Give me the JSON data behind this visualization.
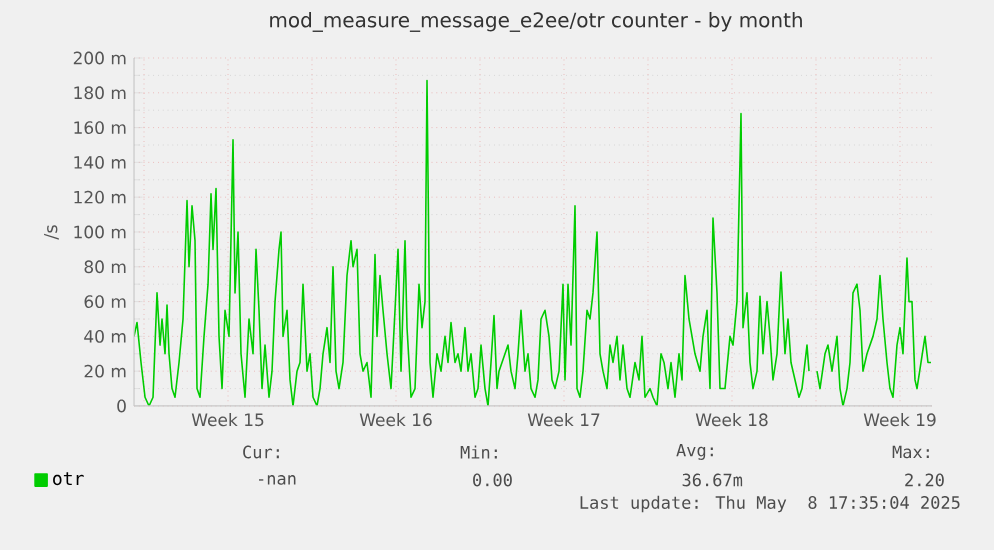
{
  "chart_data": {
    "type": "line",
    "title": "mod_measure_message_e2ee/otr counter - by month",
    "ylabel": "/s",
    "xlim": [
      "2025-04-06T14:00",
      "2025-05-09T20:00"
    ],
    "ylim": [
      0,
      200
    ],
    "xticks": [
      {
        "value": "2025-04-07T00:00",
        "label": null
      },
      {
        "value": "2025-04-10T12:00",
        "label": "Week 15"
      },
      {
        "value": "2025-04-14T00:00",
        "label": null
      },
      {
        "value": "2025-04-17T12:00",
        "label": "Week 16"
      },
      {
        "value": "2025-04-21T00:00",
        "label": null
      },
      {
        "value": "2025-04-24T12:00",
        "label": "Week 17"
      },
      {
        "value": "2025-04-28T00:00",
        "label": null
      },
      {
        "value": "2025-05-01T12:00",
        "label": "Week 18"
      },
      {
        "value": "2025-05-05T00:00",
        "label": null
      },
      {
        "value": "2025-05-08T12:00",
        "label": "Week 19"
      }
    ],
    "yticks": [
      {
        "value": 0,
        "label": "0"
      },
      {
        "value": 20,
        "label": "20 m"
      },
      {
        "value": 40,
        "label": "40 m"
      },
      {
        "value": 60,
        "label": "60 m"
      },
      {
        "value": 80,
        "label": "80 m"
      },
      {
        "value": 100,
        "label": "100 m"
      },
      {
        "value": 120,
        "label": "120 m"
      },
      {
        "value": 140,
        "label": "140 m"
      },
      {
        "value": 160,
        "label": "160 m"
      },
      {
        "value": 180,
        "label": "180 m"
      },
      {
        "value": 200,
        "label": "200 m"
      }
    ],
    "grid": true,
    "legend": "bottom",
    "annotations": [
      "Cur:",
      "Min:",
      "Avg:",
      "Max:",
      "-nan",
      "0.00",
      "36.67m",
      "2.20",
      "Last update: Thu May  8 17:35:04 2025"
    ],
    "series": [
      {
        "name": "otr",
        "color": "#00cc00",
        "x": [
          "2025-04-06T14:00",
          "2025-04-06T17:00",
          "2025-04-06T21:00",
          "2025-04-07T01:00",
          "2025-04-07T05:00",
          "2025-04-07T09:00",
          "2025-04-07T13:00",
          "2025-04-07T16:00",
          "2025-04-07T18:00",
          "2025-04-07T21:00",
          "2025-04-07T23:00",
          "2025-04-08T01:00",
          "2025-04-08T04:00",
          "2025-04-08T07:00",
          "2025-04-08T11:00",
          "2025-04-08T15:00",
          "2025-04-08T19:00",
          "2025-04-08T21:00",
          "2025-04-09T00:00",
          "2025-04-09T03:00",
          "2025-04-09T05:00",
          "2025-04-09T08:00",
          "2025-04-09T12:00",
          "2025-04-09T16:00",
          "2025-04-09T19:00",
          "2025-04-09T21:00",
          "2025-04-10T00:00",
          "2025-04-10T03:00",
          "2025-04-10T06:00",
          "2025-04-10T09:00",
          "2025-04-10T13:00",
          "2025-04-10T17:00",
          "2025-04-10T19:00",
          "2025-04-10T22:00",
          "2025-04-11T01:00",
          "2025-04-11T05:00",
          "2025-04-11T09:00",
          "2025-04-11T13:00",
          "2025-04-11T16:00",
          "2025-04-11T19:00",
          "2025-04-11T22:00",
          "2025-04-12T01:00",
          "2025-04-12T05:00",
          "2025-04-12T08:00",
          "2025-04-12T11:00",
          "2025-04-12T15:00",
          "2025-04-12T17:00",
          "2025-04-12T19:00",
          "2025-04-12T23:00",
          "2025-04-13T02:00",
          "2025-04-13T05:00",
          "2025-04-13T09:00",
          "2025-04-13T12:00",
          "2025-04-13T15:00",
          "2025-04-13T19:00",
          "2025-04-13T22:00",
          "2025-04-14T01:00",
          "2025-04-14T05:00",
          "2025-04-14T08:00",
          "2025-04-14T11:00",
          "2025-04-14T15:00",
          "2025-04-14T18:00",
          "2025-04-14T21:00",
          "2025-04-15T00:00",
          "2025-04-15T03:00",
          "2025-04-15T07:00",
          "2025-04-15T11:00",
          "2025-04-15T15:00",
          "2025-04-15T17:00",
          "2025-04-15T21:00",
          "2025-04-16T00:00",
          "2025-04-16T03:00",
          "2025-04-16T07:00",
          "2025-04-16T11:00",
          "2025-04-16T15:00",
          "2025-04-16T17:00",
          "2025-04-16T20:00",
          "2025-04-16T23:00",
          "2025-04-17T03:00",
          "2025-04-17T07:00",
          "2025-04-17T11:00",
          "2025-04-17T14:00",
          "2025-04-17T17:00",
          "2025-04-17T21:00",
          "2025-04-17T23:00",
          "2025-04-18T03:00",
          "2025-04-18T07:00",
          "2025-04-18T11:00",
          "2025-04-18T14:00",
          "2025-04-18T17:00",
          "2025-04-18T19:00",
          "2025-04-18T22:00",
          "2025-04-19T01:00",
          "2025-04-19T05:00",
          "2025-04-19T09:00",
          "2025-04-19T13:00",
          "2025-04-19T16:00",
          "2025-04-19T19:00",
          "2025-04-19T23:00",
          "2025-04-20T02:00",
          "2025-04-20T05:00",
          "2025-04-20T09:00",
          "2025-04-20T12:00",
          "2025-04-20T15:00",
          "2025-04-20T19:00",
          "2025-04-20T22:00",
          "2025-04-21T01:00",
          "2025-04-21T05:00",
          "2025-04-21T08:00",
          "2025-04-21T11:00",
          "2025-04-21T14:00",
          "2025-04-21T17:00",
          "2025-04-21T19:00",
          "2025-04-22T01:00",
          "2025-04-22T04:00",
          "2025-04-22T07:00",
          "2025-04-22T11:00",
          "2025-04-22T14:00",
          "2025-04-22T17:00",
          "2025-04-22T21:00",
          "2025-04-23T00:00",
          "2025-04-23T03:00",
          "2025-04-23T07:00",
          "2025-04-23T10:00",
          "2025-04-23T13:00",
          "2025-04-23T17:00",
          "2025-04-23T21:00",
          "2025-04-24T00:00",
          "2025-04-24T03:00",
          "2025-04-24T07:00",
          "2025-04-24T11:00",
          "2025-04-24T13:00",
          "2025-04-24T16:00",
          "2025-04-24T19:00",
          "2025-04-24T23:00",
          "2025-04-25T01:00",
          "2025-04-25T04:00",
          "2025-04-25T07:00",
          "2025-04-25T11:00",
          "2025-04-25T14:00",
          "2025-04-25T17:00",
          "2025-04-25T21:00",
          "2025-04-26T00:00",
          "2025-04-26T03:00",
          "2025-04-26T07:00",
          "2025-04-26T10:00",
          "2025-04-26T13:00",
          "2025-04-26T17:00",
          "2025-04-26T20:00",
          "2025-04-26T23:00",
          "2025-04-27T03:00",
          "2025-04-27T06:00",
          "2025-04-27T11:00",
          "2025-04-27T15:00",
          "2025-04-27T18:00",
          "2025-04-27T21:00",
          "2025-04-28T02:00",
          "2025-04-28T05:00",
          "2025-04-28T09:00",
          "2025-04-28T13:00",
          "2025-04-28T16:00",
          "2025-04-28T20:00",
          "2025-04-28T23:00",
          "2025-04-29T03:00",
          "2025-04-29T07:00",
          "2025-04-29T10:00",
          "2025-04-29T13:00",
          "2025-04-29T17:00",
          "2025-04-29T20:00",
          "2025-04-29T23:00",
          "2025-04-30T04:00",
          "2025-04-30T07:00",
          "2025-04-30T11:00",
          "2025-04-30T14:00",
          "2025-04-30T17:00",
          "2025-04-30T21:00",
          "2025-05-01T00:00",
          "2025-05-01T05:00",
          "2025-05-01T10:00",
          "2025-05-01T13:00",
          "2025-05-01T17:00",
          "2025-05-01T21:00",
          "2025-05-01T23:00",
          "2025-05-02T03:00",
          "2025-05-02T06:00",
          "2025-05-02T09:00",
          "2025-05-02T13:00",
          "2025-05-02T16:00",
          "2025-05-02T19:00",
          "2025-05-02T23:00",
          "2025-05-03T02:00",
          "2025-05-03T05:00",
          "2025-05-03T09:00",
          "2025-05-03T13:00",
          "2025-05-03T17:00",
          "2025-05-03T20:00",
          "2025-05-03T23:00",
          "2025-05-04T03:00",
          "2025-05-04T07:00",
          "2025-05-04T10:00",
          "2025-05-04T15:00",
          "2025-05-04T17:00",
          "2025-05-04T21:00",
          "2025-05-05T01:00",
          "2025-05-05T04:00",
          "2025-05-05T09:00",
          "2025-05-05T12:00",
          "2025-05-05T16:00",
          "2025-05-05T21:00",
          "2025-05-06T00:00",
          "2025-05-06T03:00",
          "2025-05-06T07:00",
          "2025-05-06T10:00",
          "2025-05-06T13:00",
          "2025-05-06T17:00",
          "2025-05-06T20:00",
          "2025-05-06T23:00",
          "2025-05-07T03:00",
          "2025-05-07T09:00",
          "2025-05-07T13:00",
          "2025-05-07T16:00",
          "2025-05-07T19:00",
          "2025-05-07T23:00",
          "2025-05-08T02:00",
          "2025-05-08T05:00",
          "2025-05-08T09:00",
          "2025-05-08T12:00",
          "2025-05-08T15:00",
          "2025-05-08T19:00",
          "2025-05-08T21:00",
          "2025-05-09T00:00",
          "2025-05-09T03:00",
          "2025-05-09T05:00",
          "2025-05-09T09:00",
          "2025-05-09T13:00",
          "2025-05-09T16:00",
          "2025-05-09T19:00"
        ],
        "values": [
          40,
          48,
          25,
          5,
          0,
          5,
          65,
          35,
          50,
          30,
          58,
          30,
          10,
          5,
          25,
          50,
          118,
          80,
          115,
          95,
          10,
          5,
          40,
          70,
          122,
          90,
          125,
          40,
          10,
          55,
          40,
          153,
          65,
          100,
          30,
          5,
          50,
          30,
          90,
          55,
          10,
          35,
          5,
          20,
          60,
          90,
          100,
          40,
          55,
          15,
          0,
          20,
          25,
          70,
          20,
          30,
          5,
          0,
          10,
          30,
          45,
          25,
          80,
          20,
          10,
          25,
          75,
          95,
          80,
          90,
          30,
          20,
          25,
          5,
          87,
          40,
          75,
          55,
          30,
          10,
          55,
          90,
          20,
          95,
          45,
          5,
          10,
          70,
          45,
          60,
          187,
          25,
          5,
          30,
          20,
          40,
          25,
          48,
          25,
          30,
          20,
          45,
          20,
          30,
          5,
          10,
          35,
          10,
          0,
          25,
          52,
          10,
          20,
          30,
          35,
          20,
          10,
          30,
          55,
          20,
          30,
          10,
          5,
          15,
          50,
          55,
          40,
          15,
          10,
          20,
          70,
          15,
          70,
          35,
          115,
          10,
          5,
          20,
          55,
          50,
          65,
          100,
          30,
          20,
          10,
          35,
          25,
          40,
          15,
          35,
          10,
          5,
          25,
          15,
          40,
          5,
          10,
          5,
          0,
          30,
          25,
          10,
          25,
          5,
          30,
          15,
          75,
          50,
          40,
          30,
          20,
          40,
          55,
          10,
          108,
          65,
          10,
          10,
          40,
          35,
          60,
          168,
          45,
          65,
          25,
          10,
          20,
          63,
          30,
          60,
          40,
          15,
          30,
          77,
          30,
          50,
          25,
          15,
          5,
          10,
          35,
          20,
          null,
          20,
          10,
          30,
          35,
          20,
          40,
          10,
          0,
          10,
          25,
          65,
          70,
          55,
          20,
          30,
          40,
          50,
          75,
          50,
          25,
          10,
          5,
          35,
          45,
          30,
          85,
          60,
          60,
          15,
          10,
          25,
          40,
          25,
          25
        ]
      }
    ]
  }
}
